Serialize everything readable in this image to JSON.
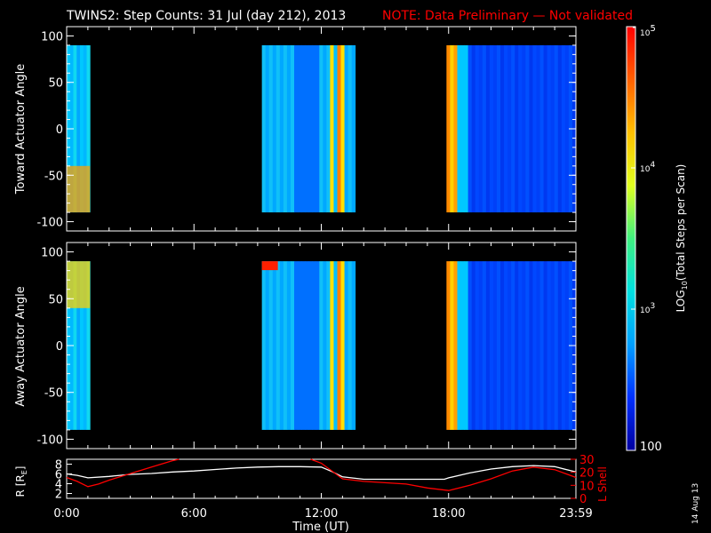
{
  "header": {
    "title": "TWINS2: Step Counts: 31 Jul (day 212), 2013",
    "note": "NOTE: Data Preliminary — Not validated",
    "date_stamp": "14 Aug 13"
  },
  "colors": {
    "background": "#000000",
    "axes": "#ffffff",
    "note": "#ff0000",
    "r_line": "#ffffff",
    "l_shell": "#ff0000"
  },
  "chart_data": [
    {
      "type": "heatmap",
      "ylabel": "Toward Actuator Angle",
      "ylim": [
        -110,
        110
      ],
      "yticks": [
        100,
        50,
        0,
        -50,
        -100
      ],
      "ytick_labels": [
        "100",
        "50",
        "0",
        "-50",
        "-100"
      ],
      "data_extent": [
        -90,
        90
      ],
      "xlim": [
        0,
        24
      ],
      "segments": [
        {
          "start": 0.0,
          "end": 1.1,
          "level": "high-near-bottom"
        },
        {
          "start": 9.2,
          "end": 13.6,
          "level": "medium-with-peaks"
        },
        {
          "start": 17.9,
          "end": 24.0,
          "level": "medium-then-low"
        }
      ]
    },
    {
      "type": "heatmap",
      "ylabel": "Away Actuator Angle",
      "ylim": [
        -110,
        110
      ],
      "yticks": [
        100,
        50,
        0,
        -50,
        -100
      ],
      "ytick_labels": [
        "100",
        "50",
        "0",
        "-50",
        "-100"
      ],
      "data_extent": [
        -90,
        90
      ],
      "xlim": [
        0,
        24
      ],
      "segments": [
        {
          "start": 0.0,
          "end": 1.1,
          "level": "high-near-top"
        },
        {
          "start": 9.2,
          "end": 13.6,
          "level": "medium-with-peaks"
        },
        {
          "start": 17.9,
          "end": 24.0,
          "level": "medium-then-low"
        }
      ]
    },
    {
      "type": "line",
      "xlabel": "Time (UT)",
      "x_ticks": [
        0,
        6,
        12,
        18,
        24
      ],
      "x_tick_labels": [
        "0:00",
        "6:00",
        "12:00",
        "18:00",
        "23:59"
      ],
      "ylabel_left": "R [R",
      "ylabel_left_sub": "E",
      "ylabel_left_close": "]",
      "ylim_left": [
        1,
        9
      ],
      "yticks_left": [
        2,
        4,
        6,
        8
      ],
      "ylabel_right": "L Shell",
      "ylim_right": [
        0,
        30
      ],
      "yticks_right": [
        0,
        10,
        20,
        30
      ],
      "series": [
        {
          "axis": "left",
          "x": [
            0,
            0.5,
            1,
            2,
            3,
            4,
            5,
            6,
            7,
            8,
            9,
            10,
            11,
            12,
            12.5,
            13,
            14,
            15,
            16,
            17,
            17.8,
            18,
            19,
            20,
            21,
            22,
            23,
            24
          ],
          "y": [
            6.0,
            5.7,
            5.2,
            5.5,
            5.9,
            6.1,
            6.4,
            6.6,
            6.9,
            7.2,
            7.4,
            7.5,
            7.5,
            7.4,
            6.5,
            5.4,
            4.9,
            4.9,
            4.9,
            4.9,
            4.9,
            5.2,
            6.2,
            7.0,
            7.5,
            7.7,
            7.5,
            6.4
          ]
        },
        {
          "axis": "right",
          "x": [
            0,
            0.5,
            1,
            1.5,
            2,
            3,
            4,
            5,
            5.3
          ],
          "y": [
            16,
            13,
            9,
            11,
            14,
            19,
            24,
            29,
            30
          ]
        },
        {
          "axis": "right",
          "x": [
            11.5,
            12,
            13,
            14,
            15,
            16,
            17,
            18,
            19,
            20,
            21,
            22,
            23,
            24
          ],
          "y": [
            30,
            27,
            15,
            13,
            12,
            11,
            8,
            6,
            10,
            15,
            21,
            24,
            22,
            16
          ]
        }
      ]
    }
  ],
  "colorbar": {
    "label": "LOG",
    "label_sub": "10",
    "label_rest": "(Total Steps per Scan)",
    "tick_100": "100",
    "tick_1e3_base": "10",
    "tick_1e3_exp": "3",
    "tick_1e4_base": "10",
    "tick_1e4_exp": "4",
    "tick_1e5_base": "10",
    "tick_1e5_exp": "5",
    "range": [
      100,
      100000
    ],
    "stops": [
      "#0000a0",
      "#0030ff",
      "#00a0ff",
      "#00e0e0",
      "#40f080",
      "#e0ff20",
      "#ffc000",
      "#ff6000",
      "#ff0000"
    ]
  }
}
